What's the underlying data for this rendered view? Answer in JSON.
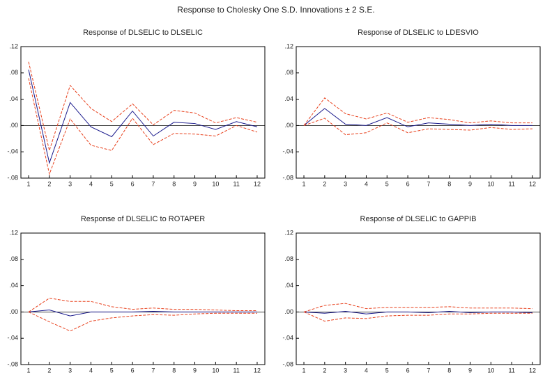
{
  "title": "Response to Cholesky One S.D. Innovations ± 2 S.E.",
  "chart_data": [
    {
      "type": "line",
      "title": "Response of DLSELIC to DLSELIC",
      "x": [
        1,
        2,
        3,
        4,
        5,
        6,
        7,
        8,
        9,
        10,
        11,
        12
      ],
      "series": [
        {
          "color": "#1a1a8c",
          "dash": false,
          "values": [
            0.085,
            -0.057,
            0.035,
            -0.002,
            -0.017,
            0.022,
            -0.016,
            0.005,
            0.003,
            -0.006,
            0.006,
            -0.002
          ]
        },
        {
          "color": "#e8401c",
          "dash": true,
          "values": [
            0.097,
            -0.038,
            0.061,
            0.026,
            0.006,
            0.033,
            0.001,
            0.023,
            0.019,
            0.004,
            0.012,
            0.005
          ]
        },
        {
          "color": "#e8401c",
          "dash": true,
          "values": [
            0.072,
            -0.074,
            0.01,
            -0.03,
            -0.038,
            0.011,
            -0.029,
            -0.012,
            -0.013,
            -0.016,
            0.0,
            -0.01
          ]
        }
      ],
      "xlim": [
        0.63,
        12.37
      ],
      "xticks": [
        1,
        2,
        3,
        4,
        5,
        6,
        7,
        8,
        9,
        10,
        11,
        12
      ],
      "ylim": [
        -0.08,
        0.12
      ],
      "yticks": [
        {
          "value": -0.08,
          "label": "-.08"
        },
        {
          "value": -0.04,
          "label": "-.04"
        },
        {
          "value": 0,
          "label": ".00"
        },
        {
          "value": 0.04,
          "label": ".04"
        },
        {
          "value": 0.08,
          "label": ".08"
        },
        {
          "value": 0.12,
          "label": ".12"
        }
      ]
    },
    {
      "type": "line",
      "title": "Response of DLSELIC to LDESVIO",
      "x": [
        1,
        2,
        3,
        4,
        5,
        6,
        7,
        8,
        9,
        10,
        11,
        12
      ],
      "series": [
        {
          "color": "#1a1a8c",
          "dash": false,
          "values": [
            0,
            0.026,
            0.002,
            0.0,
            0.012,
            -0.002,
            0.004,
            0.002,
            0.0,
            0.002,
            0.0,
            0.0
          ]
        },
        {
          "color": "#e8401c",
          "dash": true,
          "values": [
            0,
            0.042,
            0.018,
            0.01,
            0.019,
            0.005,
            0.012,
            0.009,
            0.004,
            0.007,
            0.004,
            0.004
          ]
        },
        {
          "color": "#e8401c",
          "dash": true,
          "values": [
            0,
            0.011,
            -0.014,
            -0.011,
            0.004,
            -0.011,
            -0.005,
            -0.006,
            -0.007,
            -0.003,
            -0.006,
            -0.005
          ]
        }
      ],
      "xlim": [
        0.63,
        12.37
      ],
      "xticks": [
        1,
        2,
        3,
        4,
        5,
        6,
        7,
        8,
        9,
        10,
        11,
        12
      ],
      "ylim": [
        -0.08,
        0.12
      ],
      "yticks": [
        {
          "value": -0.08,
          "label": "-.08"
        },
        {
          "value": -0.04,
          "label": "-.04"
        },
        {
          "value": 0,
          "label": ".00"
        },
        {
          "value": 0.04,
          "label": ".04"
        },
        {
          "value": 0.08,
          "label": ".08"
        },
        {
          "value": 0.12,
          "label": ".12"
        }
      ]
    },
    {
      "type": "line",
      "title": "Response of DLSELIC to ROTAPER",
      "x": [
        1,
        2,
        3,
        4,
        5,
        6,
        7,
        8,
        9,
        10,
        11,
        12
      ],
      "series": [
        {
          "color": "#1a1a8c",
          "dash": false,
          "values": [
            0,
            0.003,
            -0.006,
            0.0,
            0.0,
            0.0,
            0.001,
            0.0,
            0.0,
            0.0,
            0.0,
            0.0
          ]
        },
        {
          "color": "#e8401c",
          "dash": true,
          "values": [
            0,
            0.021,
            0.016,
            0.016,
            0.008,
            0.004,
            0.006,
            0.004,
            0.004,
            0.003,
            0.002,
            0.002
          ]
        },
        {
          "color": "#e8401c",
          "dash": true,
          "values": [
            0,
            -0.015,
            -0.029,
            -0.014,
            -0.009,
            -0.006,
            -0.004,
            -0.005,
            -0.003,
            -0.002,
            -0.002,
            -0.002
          ]
        }
      ],
      "xlim": [
        0.63,
        12.37
      ],
      "xticks": [
        1,
        2,
        3,
        4,
        5,
        6,
        7,
        8,
        9,
        10,
        11,
        12
      ],
      "ylim": [
        -0.08,
        0.12
      ],
      "yticks": [
        {
          "value": -0.08,
          "label": "-.08"
        },
        {
          "value": -0.04,
          "label": "-.04"
        },
        {
          "value": 0,
          "label": ".00"
        },
        {
          "value": 0.04,
          "label": ".04"
        },
        {
          "value": 0.08,
          "label": ".08"
        },
        {
          "value": 0.12,
          "label": ".12"
        }
      ]
    },
    {
      "type": "line",
      "title": "Response of DLSELIC to GAPPIB",
      "x": [
        1,
        2,
        3,
        4,
        5,
        6,
        7,
        8,
        9,
        10,
        11,
        12
      ],
      "series": [
        {
          "color": "#1a1a8c",
          "dash": false,
          "values": [
            0,
            -0.002,
            0.001,
            -0.003,
            0.0,
            0.0,
            -0.001,
            0.001,
            -0.001,
            0.0,
            0.0,
            -0.001
          ]
        },
        {
          "color": "#e8401c",
          "dash": true,
          "values": [
            0,
            0.01,
            0.013,
            0.005,
            0.007,
            0.007,
            0.007,
            0.008,
            0.006,
            0.006,
            0.006,
            0.005
          ]
        },
        {
          "color": "#e8401c",
          "dash": true,
          "values": [
            0,
            -0.014,
            -0.009,
            -0.01,
            -0.006,
            -0.005,
            -0.005,
            -0.003,
            -0.003,
            -0.002,
            -0.002,
            -0.002
          ]
        }
      ],
      "xlim": [
        0.63,
        12.37
      ],
      "xticks": [
        1,
        2,
        3,
        4,
        5,
        6,
        7,
        8,
        9,
        10,
        11,
        12
      ],
      "ylim": [
        -0.08,
        0.12
      ],
      "yticks": [
        {
          "value": -0.08,
          "label": "-.08"
        },
        {
          "value": -0.04,
          "label": "-.04"
        },
        {
          "value": 0,
          "label": ".00"
        },
        {
          "value": 0.04,
          "label": ".04"
        },
        {
          "value": 0.08,
          "label": ".08"
        },
        {
          "value": 0.12,
          "label": ".12"
        }
      ]
    }
  ]
}
